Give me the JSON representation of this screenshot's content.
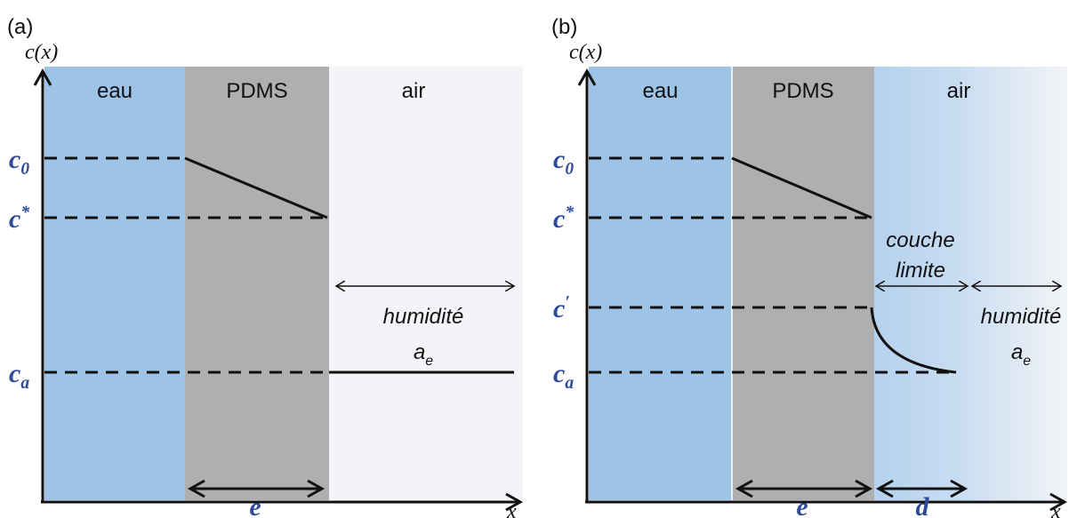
{
  "panels": [
    {
      "label": "(a)",
      "y_axis_label": "c(x)",
      "x_axis_label": "x",
      "regions": [
        "eau",
        "PDMS",
        "air"
      ],
      "levels": [
        {
          "base": "c",
          "sub": "0"
        },
        {
          "base": "c",
          "sup": "*"
        },
        {
          "base": "c",
          "sub": "a"
        }
      ],
      "humidity": {
        "text": "humidité",
        "symbol": {
          "base": "a",
          "sub": "e"
        }
      },
      "thickness": "e"
    },
    {
      "label": "(b)",
      "y_axis_label": "c(x)",
      "x_axis_label": "x",
      "regions": [
        "eau",
        "PDMS",
        "air"
      ],
      "levels": [
        {
          "base": "c",
          "sub": "0"
        },
        {
          "base": "c",
          "sup": "*"
        },
        {
          "base": "c",
          "sup": "′"
        },
        {
          "base": "c",
          "sub": "a"
        }
      ],
      "boundary_layer": [
        "couche",
        "limite"
      ],
      "humidity": {
        "text": "humidité",
        "symbol": {
          "base": "a",
          "sub": "e"
        }
      },
      "thickness": "e",
      "boundary_thickness": "d"
    }
  ]
}
